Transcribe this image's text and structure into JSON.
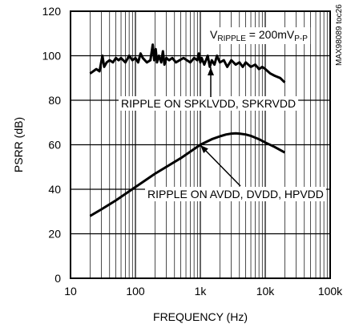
{
  "chart_data": {
    "type": "line",
    "title": "",
    "xlabel": "FREQUENCY (Hz)",
    "ylabel": "PSRR (dB)",
    "x_scale": "log",
    "xlim": [
      10,
      100000
    ],
    "ylim": [
      0,
      120
    ],
    "grid": true,
    "x_ticks": [
      10,
      100,
      1000,
      10000,
      100000
    ],
    "x_tick_labels": [
      "10",
      "100",
      "1k",
      "10k",
      "100k"
    ],
    "y_ticks": [
      0,
      20,
      40,
      60,
      80,
      100,
      120
    ],
    "y_tick_labels": [
      "0",
      "20",
      "40",
      "60",
      "80",
      "100",
      "120"
    ],
    "condition": {
      "prefix": "V",
      "subscript": "RIPPLE",
      "value": " = 200mV",
      "unit_subscript": "P-P"
    },
    "side_label": "MAX98089 toc26",
    "series": [
      {
        "name": "RIPPLE ON SPKLVDD, SPKRVDD",
        "x": [
          20,
          25,
          28,
          31,
          33,
          36,
          40,
          45,
          50,
          55,
          60,
          70,
          80,
          90,
          100,
          110,
          120,
          130,
          150,
          170,
          185,
          195,
          205,
          215,
          230,
          250,
          265,
          280,
          300,
          330,
          370,
          420,
          480,
          550,
          620,
          700,
          800,
          900,
          950,
          1000,
          1050,
          1150,
          1300,
          1400,
          1500,
          1650,
          1800,
          2000,
          2300,
          2600,
          3000,
          3500,
          4000,
          4500,
          5000,
          6000,
          7000,
          8000,
          9000,
          10000,
          12000,
          14000,
          17000,
          20000
        ],
        "y": [
          92,
          94,
          93,
          100,
          95,
          97,
          98,
          97,
          99,
          98,
          99,
          97,
          100,
          98,
          99,
          97,
          101,
          99,
          97,
          98,
          105,
          98,
          103,
          97,
          100,
          97,
          102,
          96,
          99,
          98,
          99,
          97,
          98,
          99,
          98,
          97,
          99,
          98,
          101,
          97,
          99,
          96,
          100,
          95,
          98,
          96,
          100,
          97,
          98,
          95,
          98,
          96,
          97,
          95,
          97,
          95,
          96,
          94,
          95,
          94,
          92,
          91,
          90,
          88
        ],
        "label": "RIPPLE ON SPKLVDD, SPKRVDD"
      },
      {
        "name": "RIPPLE ON AVDD, DVDD, HPVDD",
        "x": [
          20,
          30,
          50,
          100,
          200,
          500,
          1000,
          1500,
          2000,
          2500,
          3000,
          3500,
          4000,
          5000,
          6000,
          8000,
          10000,
          14000,
          20000
        ],
        "y": [
          28,
          31,
          35,
          41,
          47,
          54,
          60,
          62.5,
          63.8,
          64.6,
          65,
          65.1,
          65,
          64.6,
          64,
          62.5,
          61,
          59,
          56.5
        ],
        "label": "RIPPLE ON AVDD, DVDD, HPVDD"
      }
    ]
  }
}
